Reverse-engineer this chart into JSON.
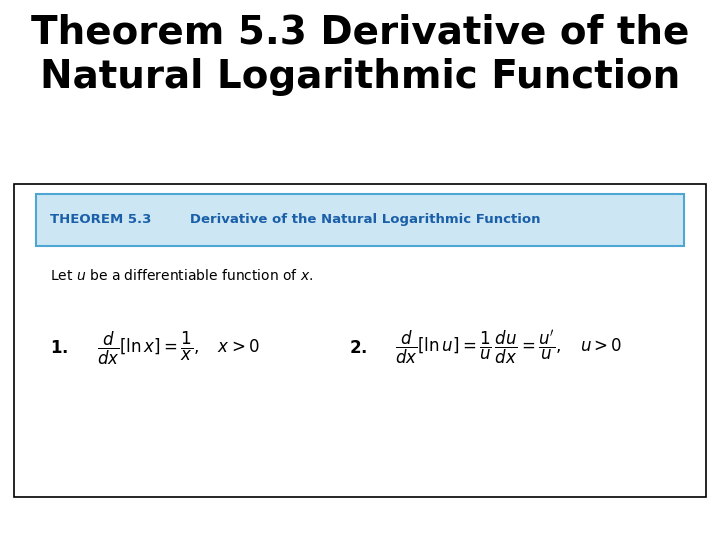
{
  "title_line1": "Theorem 5.3 Derivative of the",
  "title_line2": "Natural Logarithmic Function",
  "title_fontsize": 28,
  "title_color": "#000000",
  "bg_color": "#ffffff",
  "outer_box_color": "#000000",
  "inner_box_bg": "#cce6f4",
  "inner_box_border": "#4da6d4",
  "theorem_label": "THEOREM 5.3",
  "theorem_label_color": "#1a5fa8",
  "theorem_title": "   Derivative of the Natural Logarithmic Function",
  "theorem_title_color": "#1a5fa8",
  "let_text": "Let $u$ be a differentiable function of $x$.",
  "title_fontsize_val": 28,
  "header_fontsize": 9.5,
  "body_fontsize": 10,
  "formula_fontsize": 12
}
